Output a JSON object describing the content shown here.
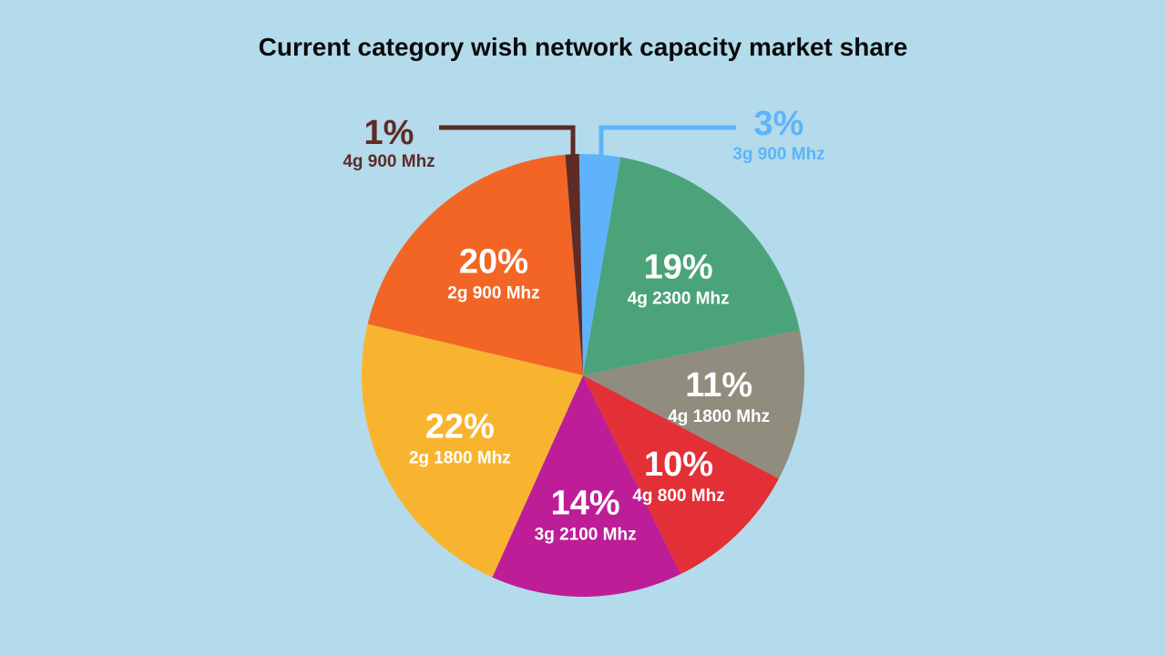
{
  "chart_data": {
    "type": "pie",
    "title": "Current category wish network capacity market share",
    "unit": "%",
    "slices": [
      {
        "label": "3g 900 Mhz",
        "value": 3,
        "display": "3%",
        "color": "#5fb3fb",
        "text_color": "#5fb3fb",
        "callout": true
      },
      {
        "label": "4g 2300 Mhz",
        "value": 19,
        "display": "19%",
        "color": "#4ba37a",
        "text_color": "#ffffff",
        "callout": false
      },
      {
        "label": "4g 1800 Mhz",
        "value": 11,
        "display": "11%",
        "color": "#908c7e",
        "text_color": "#ffffff",
        "callout": false
      },
      {
        "label": "4g 800 Mhz",
        "value": 10,
        "display": "10%",
        "color": "#e32f36",
        "text_color": "#ffffff",
        "callout": false
      },
      {
        "label": "3g 2100 Mhz",
        "value": 14,
        "display": "14%",
        "color": "#bd1e97",
        "text_color": "#ffffff",
        "callout": false
      },
      {
        "label": "2g 1800 Mhz",
        "value": 22,
        "display": "22%",
        "color": "#f8b42e",
        "text_color": "#ffffff",
        "callout": false
      },
      {
        "label": "2g 900 Mhz",
        "value": 20,
        "display": "20%",
        "color": "#f26524",
        "text_color": "#ffffff",
        "callout": false
      },
      {
        "label": "4g 900 Mhz",
        "value": 1,
        "display": "1%",
        "color": "#5e2b26",
        "text_color": "#5e2b26",
        "callout": true
      }
    ]
  }
}
